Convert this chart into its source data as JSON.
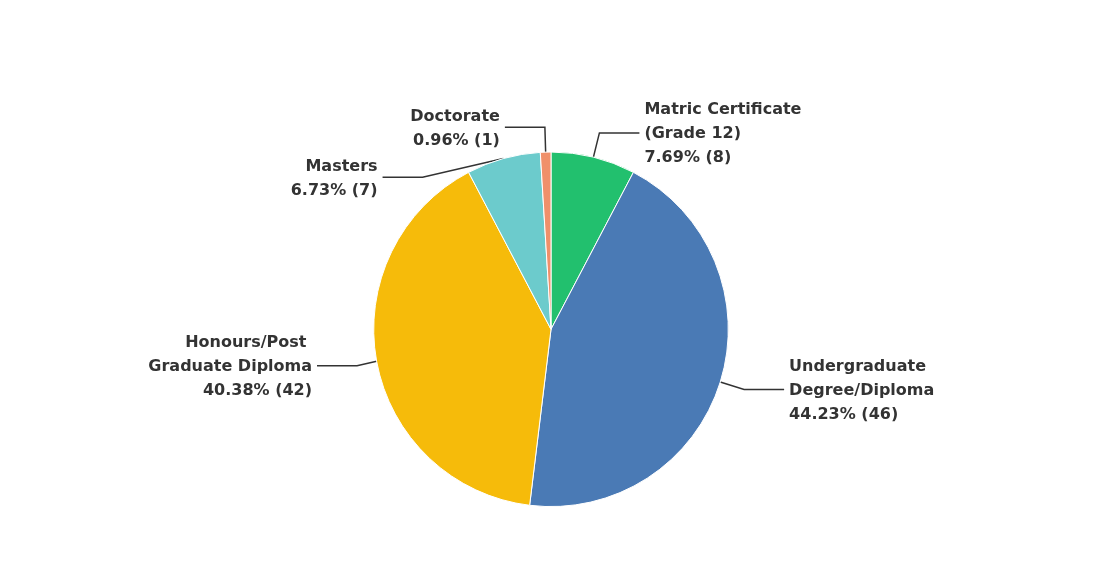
{
  "chart_data": {
    "type": "pie",
    "categories": [
      "Matric Certificate (Grade 12)",
      "Undergraduate Degree/Diploma",
      "Honours/Post Graduate Diploma",
      "Masters",
      "Doctorate"
    ],
    "values": [
      8,
      46,
      42,
      7,
      1
    ],
    "value_labels": [
      "7.69% (8)",
      "44.23% (46)",
      "40.38% (42)",
      "6.73% (7)",
      "0.96% (1)"
    ],
    "colors": [
      "#22c06e",
      "#4a7ab5",
      "#f6bb0a",
      "#6ccbcc",
      "#f0906a"
    ],
    "legend": false
  }
}
